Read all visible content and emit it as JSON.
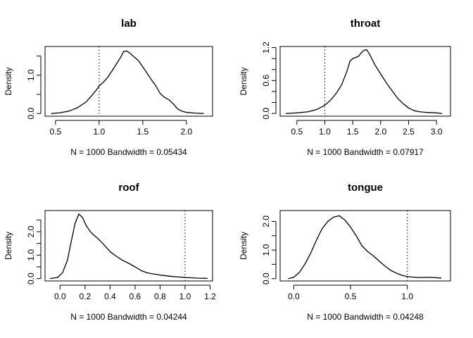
{
  "chart_data": [
    {
      "type": "line",
      "title": "lab",
      "ylabel": "Density",
      "xlabel": "N = 1000   Bandwidth = 0.05434",
      "xlim": [
        0.38,
        2.3
      ],
      "ylim": [
        -0.07,
        1.75
      ],
      "xticks": [
        0.5,
        1.0,
        1.5,
        2.0
      ],
      "xtick_labels": [
        "0.5",
        "1.0",
        "1.5",
        "2.0"
      ],
      "yticks": [
        0.0,
        0.5,
        1.0,
        1.5
      ],
      "ytick_labels": [
        "0.0",
        "",
        "1.0",
        ""
      ],
      "vline": 1.0,
      "x": [
        0.45,
        0.55,
        0.65,
        0.75,
        0.85,
        0.92,
        0.98,
        1.0,
        1.05,
        1.1,
        1.15,
        1.2,
        1.25,
        1.28,
        1.32,
        1.35,
        1.4,
        1.45,
        1.5,
        1.55,
        1.6,
        1.65,
        1.7,
        1.75,
        1.8,
        1.85,
        1.9,
        1.95,
        2.0,
        2.1,
        2.2
      ],
      "y": [
        0.0,
        0.02,
        0.06,
        0.15,
        0.3,
        0.48,
        0.65,
        0.72,
        0.82,
        0.95,
        1.12,
        1.3,
        1.48,
        1.62,
        1.63,
        1.58,
        1.48,
        1.38,
        1.22,
        1.05,
        0.88,
        0.72,
        0.52,
        0.42,
        0.36,
        0.25,
        0.12,
        0.06,
        0.03,
        0.01,
        0.0
      ]
    },
    {
      "type": "line",
      "title": "throat",
      "ylabel": "Density",
      "xlabel": "N = 1000   Bandwidth = 0.07917",
      "xlim": [
        0.2,
        3.25
      ],
      "ylim": [
        -0.05,
        1.22
      ],
      "xticks": [
        0.5,
        1.0,
        1.5,
        2.0,
        2.5,
        3.0
      ],
      "xtick_labels": [
        "0.5",
        "1.0",
        "1.5",
        "2.0",
        "2.5",
        "3.0"
      ],
      "yticks": [
        0.0,
        0.2,
        0.4,
        0.6,
        0.8,
        1.0,
        1.2
      ],
      "ytick_labels": [
        "0.0",
        "",
        "",
        "0.6",
        "",
        "",
        "1.2"
      ],
      "vline": 1.0,
      "x": [
        0.3,
        0.5,
        0.7,
        0.85,
        1.0,
        1.1,
        1.2,
        1.3,
        1.4,
        1.45,
        1.5,
        1.55,
        1.6,
        1.65,
        1.7,
        1.75,
        1.8,
        1.9,
        2.0,
        2.1,
        2.2,
        2.3,
        2.4,
        2.5,
        2.6,
        2.7,
        2.8,
        3.0,
        3.1
      ],
      "y": [
        0.0,
        0.01,
        0.03,
        0.07,
        0.15,
        0.24,
        0.36,
        0.52,
        0.78,
        0.95,
        1.0,
        1.02,
        1.04,
        1.1,
        1.15,
        1.16,
        1.08,
        0.88,
        0.72,
        0.56,
        0.42,
        0.28,
        0.18,
        0.1,
        0.05,
        0.03,
        0.02,
        0.01,
        0.0
      ]
    },
    {
      "type": "line",
      "title": "roof",
      "ylabel": "Density",
      "xlabel": "N = 1000   Bandwidth = 0.04244",
      "xlim": [
        -0.12,
        1.22
      ],
      "ylim": [
        -0.1,
        2.9
      ],
      "xticks": [
        0.0,
        0.2,
        0.4,
        0.6,
        0.8,
        1.0,
        1.2
      ],
      "xtick_labels": [
        "0.0",
        "0.2",
        "0.4",
        "0.6",
        "0.8",
        "1.0",
        "1.2"
      ],
      "yticks": [
        0.0,
        0.5,
        1.0,
        1.5,
        2.0,
        2.5
      ],
      "ytick_labels": [
        "0.0",
        "",
        "1.0",
        "",
        "2.0",
        ""
      ],
      "vline": 1.0,
      "x": [
        -0.08,
        -0.02,
        0.02,
        0.06,
        0.09,
        0.12,
        0.15,
        0.18,
        0.21,
        0.25,
        0.3,
        0.35,
        0.4,
        0.45,
        0.5,
        0.55,
        0.6,
        0.65,
        0.7,
        0.8,
        0.9,
        1.0,
        1.1,
        1.18
      ],
      "y": [
        0.0,
        0.05,
        0.25,
        0.8,
        1.6,
        2.35,
        2.75,
        2.6,
        2.25,
        1.95,
        1.72,
        1.45,
        1.15,
        0.95,
        0.78,
        0.65,
        0.5,
        0.34,
        0.24,
        0.15,
        0.09,
        0.05,
        0.02,
        0.01
      ]
    },
    {
      "type": "line",
      "title": "tongue",
      "ylabel": "Density",
      "xlabel": "N = 1000   Bandwidth = 0.04248",
      "xlim": [
        -0.12,
        1.38
      ],
      "ylim": [
        -0.08,
        2.38
      ],
      "xticks": [
        0.0,
        0.5,
        1.0
      ],
      "xtick_labels": [
        "0.0",
        "0.5",
        "1.0"
      ],
      "yticks": [
        0.0,
        0.5,
        1.0,
        1.5,
        2.0
      ],
      "ytick_labels": [
        "0.0",
        "",
        "1.0",
        "",
        "2.0"
      ],
      "vline": 1.0,
      "x": [
        -0.05,
        0.0,
        0.05,
        0.1,
        0.15,
        0.2,
        0.25,
        0.3,
        0.35,
        0.4,
        0.45,
        0.5,
        0.55,
        0.6,
        0.65,
        0.7,
        0.75,
        0.8,
        0.85,
        0.9,
        0.95,
        1.0,
        1.1,
        1.2,
        1.3
      ],
      "y": [
        0.0,
        0.05,
        0.22,
        0.52,
        0.9,
        1.35,
        1.75,
        2.0,
        2.15,
        2.2,
        2.05,
        1.8,
        1.5,
        1.15,
        0.95,
        0.8,
        0.62,
        0.45,
        0.3,
        0.2,
        0.12,
        0.07,
        0.04,
        0.05,
        0.02
      ]
    }
  ]
}
